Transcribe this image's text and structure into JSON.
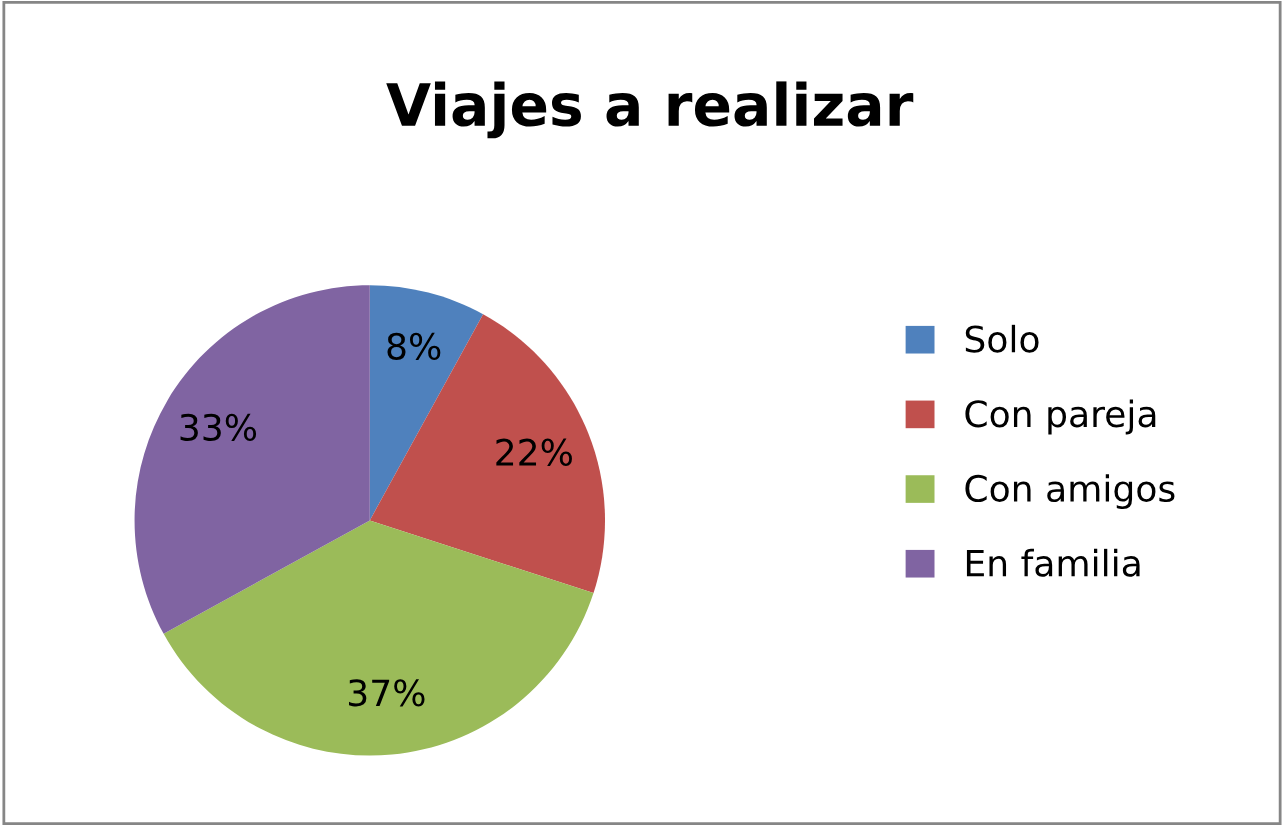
{
  "chart_data": {
    "type": "pie",
    "title": "Viajes a realizar",
    "categories": [
      "Solo",
      "Con pareja",
      "Con amigos",
      "En familia"
    ],
    "values": [
      8,
      22,
      37,
      33
    ],
    "colors": [
      "#4f81bd",
      "#c0504d",
      "#9bbb59",
      "#8064a2"
    ],
    "value_labels": [
      "8%",
      "22%",
      "37%",
      "33%"
    ],
    "legend": "right"
  }
}
